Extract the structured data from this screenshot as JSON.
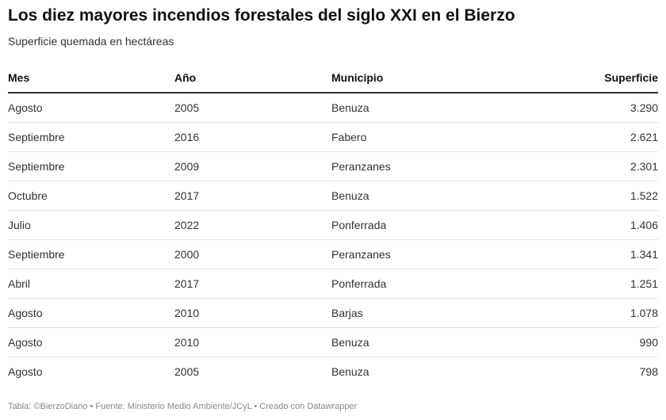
{
  "title": "Los diez mayores incendios forestales del siglo XXI en el Bierzo",
  "subtitle": "Superficie quemada en hectáreas",
  "footer": "Tabla: ©BierzoDiario • Fuente: Ministerio Medio Ambiente/JCyL • Creado con Datawrapper",
  "chart_data": {
    "type": "table",
    "title": "Los diez mayores incendios forestales del siglo XXI en el Bierzo",
    "subtitle": "Superficie quemada en hectáreas",
    "columns": [
      "Mes",
      "Año",
      "Municipio",
      "Superficie"
    ],
    "rows": [
      [
        "Agosto",
        "2005",
        "Benuza",
        "3.290"
      ],
      [
        "Septiembre",
        "2016",
        "Fabero",
        "2.621"
      ],
      [
        "Septiembre",
        "2009",
        "Peranzanes",
        "2.301"
      ],
      [
        "Octubre",
        "2017",
        "Benuza",
        "1.522"
      ],
      [
        "Julio",
        "2022",
        "Ponferrada",
        "1.406"
      ],
      [
        "Septiembre",
        "2000",
        "Peranzanes",
        "1.341"
      ],
      [
        "Abril",
        "2017",
        "Ponferrada",
        "1.251"
      ],
      [
        "Agosto",
        "2010",
        "Barjas",
        "1.078"
      ],
      [
        "Agosto",
        "2010",
        "Benuza",
        "990"
      ],
      [
        "Agosto",
        "2005",
        "Benuza",
        "798"
      ]
    ]
  }
}
